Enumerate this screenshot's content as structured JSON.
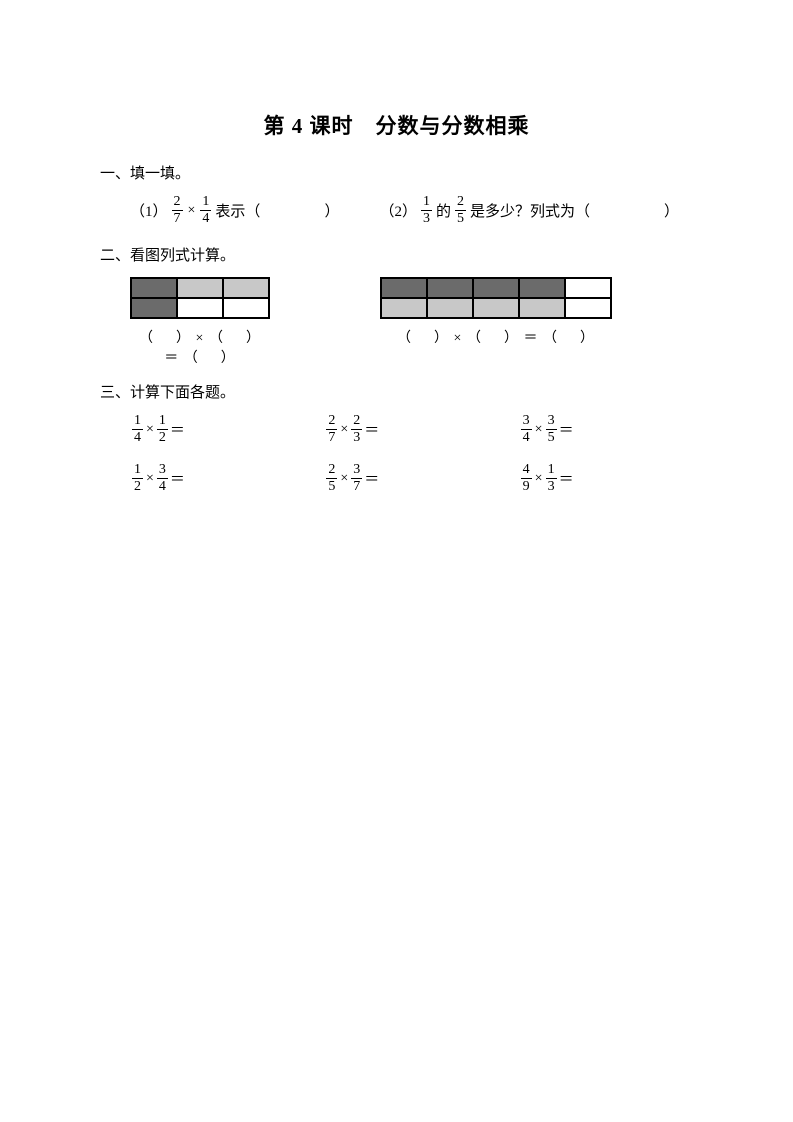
{
  "title": "第 4 课时　分数与分数相乘",
  "section1": {
    "head": "一、填一填。",
    "q1_label": "（1）",
    "q1_frac1_n": "2",
    "q1_frac1_d": "7",
    "q1_frac2_n": "1",
    "q1_frac2_d": "4",
    "q1_text": "表示（",
    "q1_close": "）",
    "q2_label": "（2）",
    "q2_frac1_n": "1",
    "q2_frac1_d": "3",
    "q2_mid": "的",
    "q2_frac2_n": "2",
    "q2_frac2_d": "5",
    "q2_text": "是多少？列式为（",
    "q2_close": "）"
  },
  "section2": {
    "head": "二、看图列式计算。",
    "gridA": {
      "cols": 3,
      "rows": 2,
      "cells": [
        "dark",
        "light",
        "light",
        "dark",
        "white",
        "white"
      ],
      "border_color": "#000000",
      "dark_color": "#6b6b6b",
      "light_color": "#c8c8c8",
      "white_color": "#ffffff"
    },
    "gridB": {
      "cols": 5,
      "rows": 2,
      "cells": [
        "dark",
        "dark",
        "dark",
        "dark",
        "white",
        "light",
        "light",
        "light",
        "light",
        "white"
      ],
      "border_color": "#000000",
      "dark_color": "#6b6b6b",
      "light_color": "#c8c8c8",
      "white_color": "#ffffff"
    },
    "eq_open": "（",
    "eq_close": "）",
    "eq_times": "×",
    "eq_eq": "＝"
  },
  "section3": {
    "head": "三、计算下面各题。",
    "times": "×",
    "eq": "＝",
    "problems": [
      {
        "a_n": "1",
        "a_d": "4",
        "b_n": "1",
        "b_d": "2"
      },
      {
        "a_n": "2",
        "a_d": "7",
        "b_n": "2",
        "b_d": "3"
      },
      {
        "a_n": "3",
        "a_d": "4",
        "b_n": "3",
        "b_d": "5"
      },
      {
        "a_n": "1",
        "a_d": "2",
        "b_n": "3",
        "b_d": "4"
      },
      {
        "a_n": "2",
        "a_d": "5",
        "b_n": "3",
        "b_d": "7"
      },
      {
        "a_n": "4",
        "a_d": "9",
        "b_n": "1",
        "b_d": "3"
      }
    ]
  }
}
